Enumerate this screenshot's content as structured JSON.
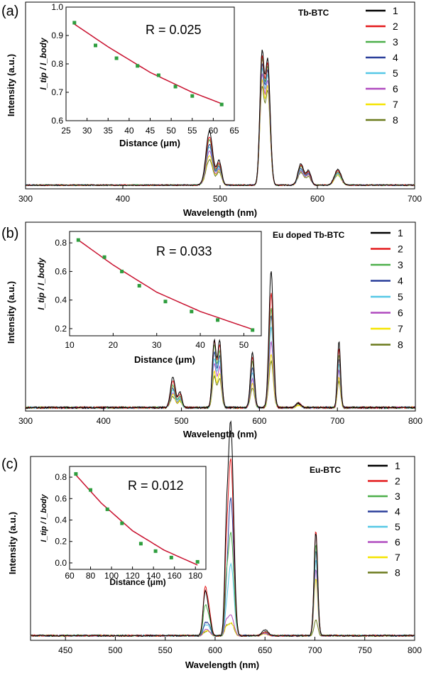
{
  "colors": [
    "#000000",
    "#e41a1c",
    "#4daf4a",
    "#2a3f9a",
    "#56c8e6",
    "#b04bbf",
    "#f5e400",
    "#6b7a1c"
  ],
  "chart_data": [
    {
      "type": "line",
      "panel_label": "(a)",
      "title": "Tb-BTC",
      "xlabel": "Wavelength (nm)",
      "ylabel": "Intensity (a.u.)",
      "xlim": [
        300,
        700
      ],
      "xticks": [
        "300",
        "400",
        "500",
        "600",
        "700"
      ],
      "legend": [
        "1",
        "2",
        "3",
        "4",
        "5",
        "6",
        "7",
        "8"
      ],
      "legend_position": "top-right",
      "peaks": [
        {
          "wl": 489,
          "w": 3.5,
          "amp": [
            0.38,
            0.34,
            0.32,
            0.29,
            0.27,
            0.24,
            0.21,
            0.18
          ]
        },
        {
          "wl": 499,
          "w": 2.5,
          "amp": [
            0.17,
            0.15,
            0.14,
            0.13,
            0.12,
            0.11,
            0.1,
            0.09
          ]
        },
        {
          "wl": 543,
          "w": 2.2,
          "amp": [
            0.9,
            0.86,
            0.84,
            0.81,
            0.78,
            0.74,
            0.7,
            0.66
          ]
        },
        {
          "wl": 549,
          "w": 2.5,
          "amp": [
            0.87,
            0.84,
            0.82,
            0.79,
            0.76,
            0.72,
            0.68,
            0.65
          ]
        },
        {
          "wl": 583,
          "w": 3,
          "amp": [
            0.15,
            0.14,
            0.13,
            0.12,
            0.11,
            0.1,
            0.1,
            0.09
          ]
        },
        {
          "wl": 591,
          "w": 2.5,
          "amp": [
            0.1,
            0.09,
            0.09,
            0.08,
            0.08,
            0.07,
            0.07,
            0.06
          ]
        },
        {
          "wl": 621,
          "w": 3.5,
          "amp": [
            0.11,
            0.1,
            0.09,
            0.09,
            0.08,
            0.08,
            0.07,
            0.07
          ]
        }
      ],
      "inset": {
        "ylabel": "I_tip / I_body",
        "xlabel": "Distance (μm)",
        "annotation": "R = 0.025",
        "xlim": [
          25,
          65
        ],
        "ylim": [
          0.6,
          1.0
        ],
        "xticks": [
          "25",
          "30",
          "35",
          "40",
          "45",
          "50",
          "55",
          "60",
          "65"
        ],
        "yticks": [
          "0.6",
          "0.7",
          "0.8",
          "0.9",
          "1.0"
        ],
        "x": [
          27,
          32,
          37,
          42,
          47,
          51,
          55,
          62
        ],
        "y": [
          0.945,
          0.865,
          0.82,
          0.793,
          0.76,
          0.72,
          0.687,
          0.657
        ],
        "fit_x": [
          27,
          35,
          45,
          55,
          62
        ],
        "fit_y": [
          0.94,
          0.86,
          0.77,
          0.7,
          0.66
        ]
      }
    },
    {
      "type": "line",
      "panel_label": "(b)",
      "title": "Eu doped Tb-BTC",
      "xlabel": "Wavelength (nm)",
      "ylabel": "Intensity (a.u.)",
      "xlim": [
        300,
        800
      ],
      "xticks": [
        "300",
        "400",
        "500",
        "600",
        "700",
        "800"
      ],
      "legend": [
        "1",
        "2",
        "3",
        "4",
        "5",
        "6",
        "7",
        "8"
      ],
      "legend_position": "top-right",
      "peaks": [
        {
          "wl": 489,
          "w": 3,
          "amp": [
            0.14,
            0.12,
            0.1,
            0.09,
            0.08,
            0.07,
            0.06,
            0.05
          ]
        },
        {
          "wl": 498,
          "w": 2.5,
          "amp": [
            0.07,
            0.06,
            0.05,
            0.05,
            0.04,
            0.04,
            0.03,
            0.03
          ]
        },
        {
          "wl": 542,
          "w": 2.5,
          "amp": [
            0.3,
            0.3,
            0.28,
            0.25,
            0.22,
            0.2,
            0.16,
            0.14
          ]
        },
        {
          "wl": 549,
          "w": 2.5,
          "amp": [
            0.3,
            0.28,
            0.25,
            0.23,
            0.21,
            0.18,
            0.15,
            0.13
          ]
        },
        {
          "wl": 591,
          "w": 2.5,
          "amp": [
            0.25,
            0.23,
            0.21,
            0.18,
            0.16,
            0.13,
            0.11,
            0.09
          ]
        },
        {
          "wl": 615,
          "w": 2.8,
          "amp": [
            0.62,
            0.52,
            0.45,
            0.42,
            0.37,
            0.3,
            0.24,
            0.21
          ]
        },
        {
          "wl": 650,
          "w": 3,
          "amp": [
            0.02,
            0.02,
            0.02,
            0.02,
            0.02,
            0.02,
            0.01,
            0.01
          ]
        },
        {
          "wl": 702,
          "w": 2,
          "amp": [
            0.3,
            0.27,
            0.24,
            0.22,
            0.2,
            0.17,
            0.14,
            0.12
          ]
        }
      ],
      "inset": {
        "ylabel": "I_tip / I_body",
        "xlabel": "Distance (μm)",
        "annotation": "R = 0.033",
        "xlim": [
          10,
          54
        ],
        "ylim": [
          0.15,
          0.88
        ],
        "xticks": [
          "10",
          "20",
          "30",
          "40",
          "50"
        ],
        "yticks": [
          "0.2",
          "0.4",
          "0.6",
          "0.8"
        ],
        "x": [
          12,
          18,
          22,
          26,
          32,
          38,
          44,
          52
        ],
        "y": [
          0.82,
          0.7,
          0.6,
          0.5,
          0.39,
          0.32,
          0.26,
          0.19
        ],
        "fit_x": [
          12,
          20,
          30,
          40,
          52
        ],
        "fit_y": [
          0.82,
          0.645,
          0.455,
          0.32,
          0.195
        ]
      }
    },
    {
      "type": "line",
      "panel_label": "(c)",
      "title": "Eu-BTC",
      "xlabel": "Wavelength (nm)",
      "ylabel": "Intensity (a.u.)",
      "xlim": [
        415,
        800
      ],
      "xticks": [
        "450",
        "500",
        "550",
        "600",
        "650",
        "700",
        "750",
        "800"
      ],
      "legend": [
        "1",
        "2",
        "3",
        "4",
        "5",
        "6",
        "7",
        "8"
      ],
      "legend_position": "top-right",
      "peaks": [
        {
          "wl": 590,
          "w": 2,
          "amp": [
            0.22,
            0.24,
            0.15,
            0.06,
            0.05,
            0.03,
            0.02,
            0.02
          ]
        },
        {
          "wl": 594,
          "w": 2,
          "amp": [
            0.1,
            0.12,
            0.08,
            0.05,
            0.04,
            0.02,
            0.02,
            0.02
          ]
        },
        {
          "wl": 611,
          "w": 1.6,
          "amp": [
            0.38,
            0.3,
            0.2,
            0.12,
            0.08,
            0.06,
            0.04,
            0.04
          ]
        },
        {
          "wl": 615,
          "w": 2.4,
          "amp": [
            0.95,
            0.78,
            0.44,
            0.6,
            0.3,
            0.09,
            0.05,
            0.05
          ]
        },
        {
          "wl": 618,
          "w": 2.2,
          "amp": [
            0.35,
            0.3,
            0.2,
            0.25,
            0.15,
            0.04,
            0.03,
            0.03
          ]
        },
        {
          "wl": 650,
          "w": 3,
          "amp": [
            0.03,
            0.02,
            0.02,
            0.02,
            0.02,
            0.01,
            0.01,
            0.01
          ]
        },
        {
          "wl": 701,
          "w": 1.8,
          "amp": [
            0.54,
            0.55,
            0.48,
            0.45,
            0.4,
            0.35,
            0.3,
            0.08
          ]
        }
      ],
      "inset": {
        "ylabel": "I_tip / I_body",
        "xlabel": "Distance (μm)",
        "annotation": "R = 0.012",
        "xlim": [
          60,
          190
        ],
        "ylim": [
          -0.06,
          0.9
        ],
        "xticks": [
          "60",
          "80",
          "100",
          "120",
          "140",
          "160",
          "180"
        ],
        "yticks": [
          "0.0",
          "0.2",
          "0.4",
          "0.6",
          "0.8"
        ],
        "x": [
          66,
          80,
          96,
          110,
          128,
          142,
          157,
          182
        ],
        "y": [
          0.83,
          0.68,
          0.5,
          0.37,
          0.18,
          0.11,
          0.05,
          0.01
        ],
        "fit_x": [
          66,
          90,
          120,
          150,
          182
        ],
        "fit_y": [
          0.82,
          0.56,
          0.3,
          0.12,
          -0.02
        ]
      }
    }
  ]
}
